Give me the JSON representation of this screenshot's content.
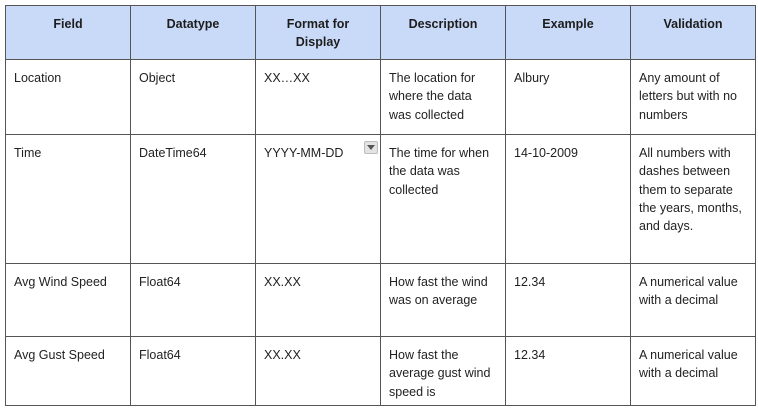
{
  "table": {
    "headers": [
      {
        "key": "field",
        "label": "Field"
      },
      {
        "key": "datatype",
        "label": "Datatype"
      },
      {
        "key": "format",
        "label": "Format for Display"
      },
      {
        "key": "description",
        "label": "Description"
      },
      {
        "key": "example",
        "label": "Example"
      },
      {
        "key": "validation",
        "label": "Validation"
      }
    ],
    "rows": [
      {
        "field": "Location",
        "datatype": "Object",
        "format": "XX…XX",
        "description": "The location for where the data was collected",
        "example": "Albury",
        "validation": "Any amount of letters but with no numbers"
      },
      {
        "field": "Time",
        "datatype": "DateTime64",
        "format": "YYYY-MM-DD",
        "description": "The time for when the data was collected",
        "example": "14-10-2009",
        "validation": "All numbers with dashes between them to separate the years, months, and days."
      },
      {
        "field": "Avg Wind Speed",
        "datatype": "Float64",
        "format": "XX.XX",
        "description": "How fast the wind was on average",
        "example": "12.34",
        "validation": "A numerical value with a decimal"
      },
      {
        "field": "Avg Gust Speed",
        "datatype": "Float64",
        "format": "XX.XX",
        "description": "How fast the average gust wind speed is",
        "example": "12.34",
        "validation": "A numerical value with a decimal"
      }
    ]
  },
  "colors": {
    "header_background": "#c9daf8",
    "border": "#555555",
    "text": "#222222"
  },
  "icons": {
    "format_cell_dropdown": "dropdown-arrow-icon"
  }
}
